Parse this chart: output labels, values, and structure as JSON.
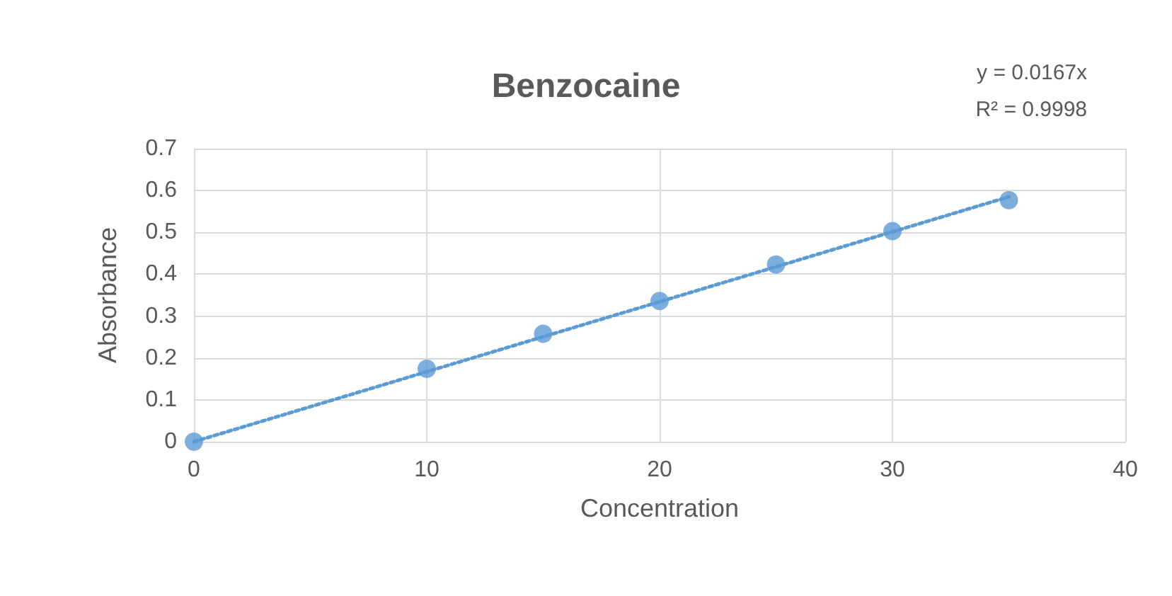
{
  "chart_data": {
    "type": "scatter",
    "title": "Benzocaine",
    "xlabel": "Concentration",
    "ylabel": "Absorbance",
    "annotations": [
      "y = 0.0167x",
      "R² = 0.9998"
    ],
    "x": [
      0,
      10,
      15,
      20,
      25,
      30,
      35
    ],
    "series": [
      {
        "type": "scatter",
        "color": "#5b9bd5",
        "marker": "circle",
        "values": [
          0,
          0.174,
          0.258,
          0.336,
          0.423,
          0.503,
          0.577
        ]
      },
      {
        "type": "line",
        "color": "#5b9bd5",
        "line_style": "dotted",
        "marker": "none",
        "x": [
          0,
          35
        ],
        "values": [
          0,
          0.585
        ]
      }
    ],
    "xlim": [
      0,
      40
    ],
    "xticks": [
      0,
      10,
      20,
      30,
      40
    ],
    "ylim": [
      0,
      0.7
    ],
    "yticks": [
      0,
      0.1,
      0.2,
      0.3,
      0.4,
      0.5,
      0.6,
      0.7
    ],
    "grid": true
  }
}
